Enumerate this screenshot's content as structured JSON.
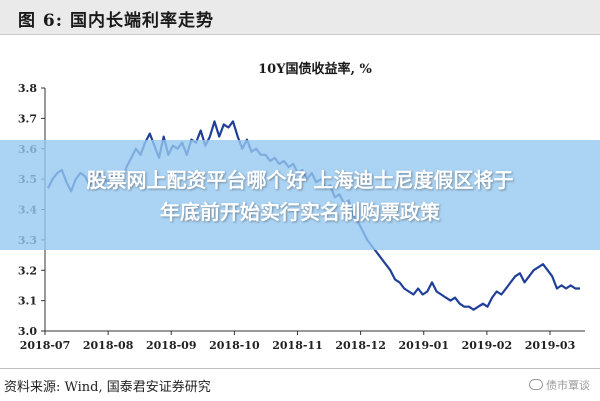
{
  "figure": {
    "title": "图 6:  国内长端利率走势"
  },
  "banner": {
    "line1": "股票网上配资平台哪个好 上海迪士尼度假区将于",
    "line2": "年底前开始实行实名制购票政策"
  },
  "source": {
    "text": "资料来源:  Wind, 国泰君安证券研究"
  },
  "watermark": {
    "icon": "wechat-icon",
    "text": "债市覃谈"
  },
  "chart_data": {
    "type": "line",
    "title": "10Y国债收益率, %",
    "xlabel": "",
    "ylabel": "",
    "ylim": [
      3.0,
      3.8
    ],
    "yticks": [
      "3.0",
      "3.1",
      "3.2",
      "3.3",
      "3.4",
      "3.5",
      "3.6",
      "3.7",
      "3.8"
    ],
    "xticks": [
      "2018-07",
      "2018-08",
      "2018-09",
      "2018-10",
      "2018-11",
      "2018-12",
      "2019-01",
      "2019-02",
      "2019-03"
    ],
    "grid": false,
    "legend": "none",
    "line_color": "#1f3f99",
    "series": [
      {
        "values": [
          3.47,
          3.5,
          3.52,
          3.53,
          3.49,
          3.46,
          3.5,
          3.52,
          3.51,
          3.48,
          3.5,
          3.52,
          3.5,
          3.49,
          3.52,
          3.5,
          3.5,
          3.54,
          3.57,
          3.6,
          3.58,
          3.62,
          3.65,
          3.61,
          3.57,
          3.64,
          3.58,
          3.61,
          3.6,
          3.62,
          3.58,
          3.63,
          3.62,
          3.66,
          3.61,
          3.64,
          3.69,
          3.64,
          3.68,
          3.67,
          3.69,
          3.64,
          3.6,
          3.63,
          3.59,
          3.6,
          3.58,
          3.58,
          3.56,
          3.57,
          3.55,
          3.56,
          3.54,
          3.55,
          3.52,
          3.53,
          3.5,
          3.52,
          3.49,
          3.5,
          3.47,
          3.48,
          3.44,
          3.45,
          3.42,
          3.43,
          3.38,
          3.36,
          3.33,
          3.3,
          3.28,
          3.26,
          3.24,
          3.22,
          3.2,
          3.17,
          3.16,
          3.14,
          3.13,
          3.12,
          3.14,
          3.12,
          3.13,
          3.16,
          3.13,
          3.12,
          3.11,
          3.1,
          3.11,
          3.09,
          3.08,
          3.08,
          3.07,
          3.08,
          3.09,
          3.08,
          3.11,
          3.13,
          3.12,
          3.14,
          3.16,
          3.18,
          3.19,
          3.16,
          3.18,
          3.2,
          3.21,
          3.22,
          3.2,
          3.18,
          3.14,
          3.15,
          3.14,
          3.15,
          3.14,
          3.14
        ]
      }
    ]
  }
}
